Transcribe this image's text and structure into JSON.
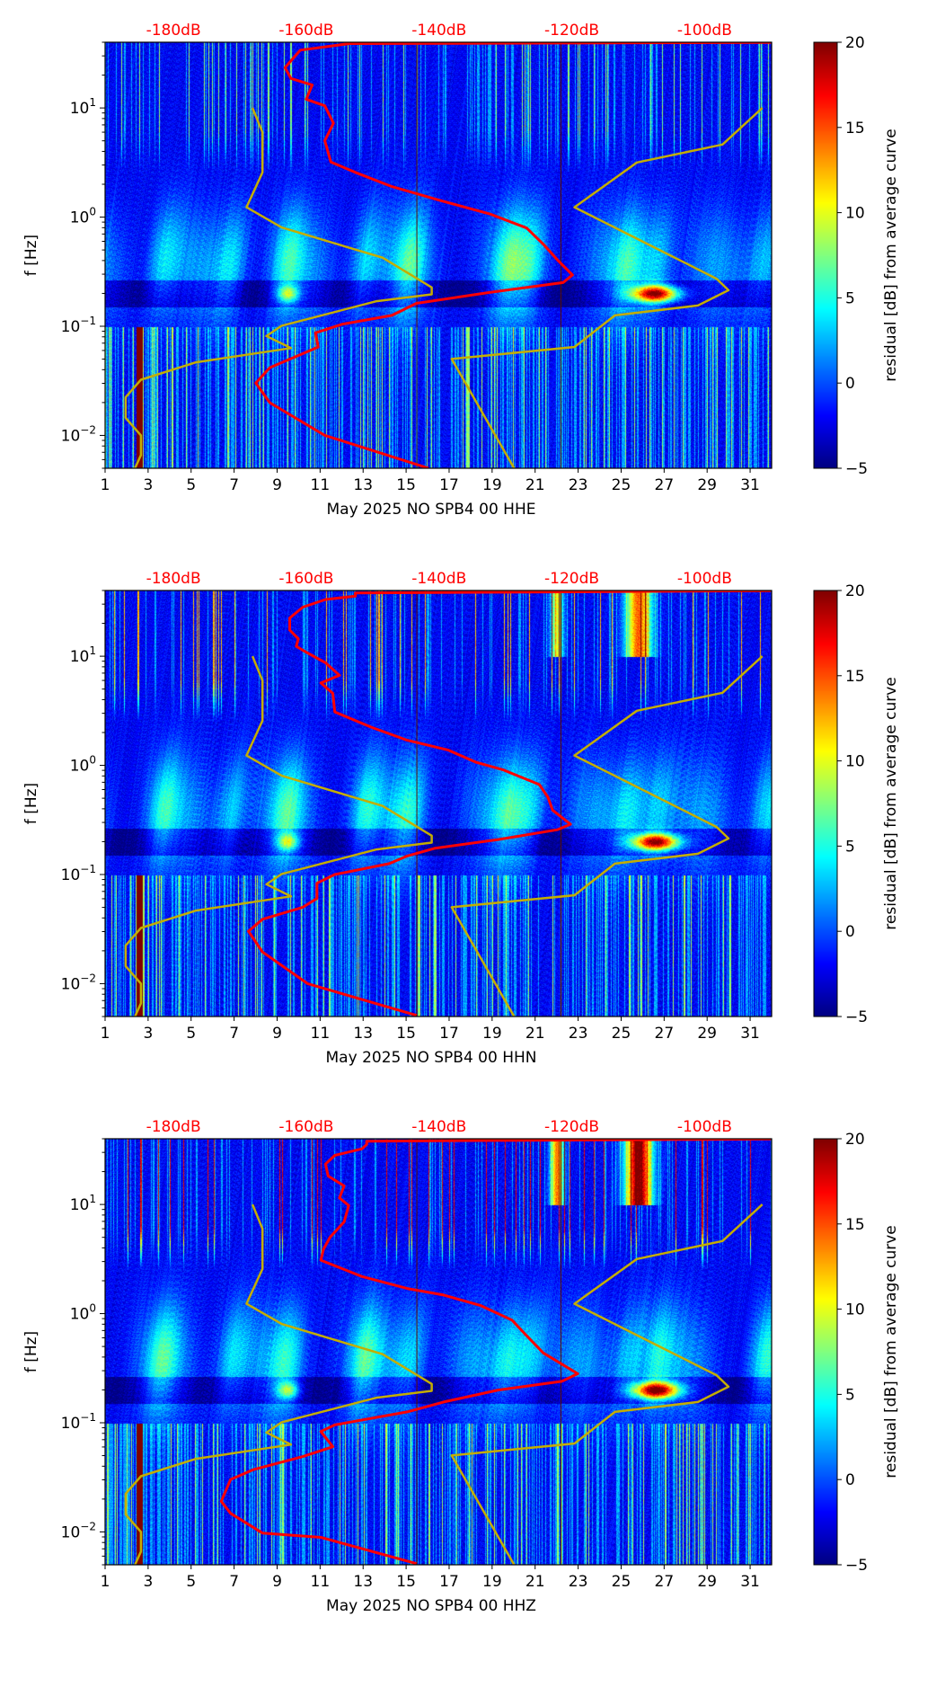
{
  "chart_data": [
    {
      "type": "heatmap",
      "xlabel": "May 2025 NO SPB4 00 HHE",
      "ylabel": "f [Hz]",
      "x_ticks": [
        1,
        3,
        5,
        7,
        9,
        11,
        13,
        15,
        17,
        19,
        21,
        23,
        25,
        27,
        29,
        31
      ],
      "xlim": [
        1,
        32
      ],
      "yscale": "log",
      "ylim": [
        0.005,
        40
      ],
      "y_ticks": [
        {
          "value": 10,
          "base": "10",
          "exp": "1"
        },
        {
          "value": 1,
          "base": "10",
          "exp": "0"
        },
        {
          "value": 0.1,
          "base": "10",
          "exp": "−1"
        },
        {
          "value": 0.01,
          "base": "10",
          "exp": "−2"
        }
      ],
      "top_axis": {
        "labels": [
          "-180dB",
          "-160dB",
          "-140dB",
          "-120dB",
          "-100dB"
        ],
        "values": [
          -180,
          -160,
          -140,
          -120,
          -100
        ],
        "range": [
          -190.3,
          -89.9
        ],
        "color": "#ff0000"
      },
      "colorbar": {
        "label": "residual [dB] from average curve",
        "ticks": [
          -5,
          0,
          5,
          10,
          15,
          20
        ],
        "tick_labels": [
          "−5",
          "0",
          "5",
          "10",
          "15",
          "20"
        ],
        "range": [
          -5,
          20
        ],
        "colormap": "jet"
      },
      "event_seed": 1,
      "curves": {
        "station_psd": {
          "color": "#ff0000",
          "points_db_log10hz": [
            [
              -90,
              1.6
            ],
            [
              -153.5,
              1.59
            ],
            [
              -160.9,
              1.53
            ],
            [
              -163.2,
              1.37
            ],
            [
              -162.3,
              1.27
            ],
            [
              -159.1,
              1.21
            ],
            [
              -160.0,
              1.08
            ],
            [
              -157.2,
              1.02
            ],
            [
              -155.9,
              0.86
            ],
            [
              -157.2,
              0.7
            ],
            [
              -156.3,
              0.505
            ],
            [
              -152.6,
              0.41
            ],
            [
              -147.1,
              0.28
            ],
            [
              -139.7,
              0.15
            ],
            [
              -132.4,
              0.03
            ],
            [
              -126.8,
              -0.1
            ],
            [
              -124.1,
              -0.26
            ],
            [
              -122.2,
              -0.39
            ],
            [
              -119.9,
              -0.53
            ],
            [
              -121.3,
              -0.6
            ],
            [
              -132.4,
              -0.69
            ],
            [
              -143.4,
              -0.79
            ],
            [
              -147.1,
              -0.9
            ],
            [
              -154.5,
              -0.98
            ],
            [
              -158.6,
              -1.06
            ],
            [
              -158.2,
              -1.19
            ],
            [
              -165.5,
              -1.38
            ],
            [
              -167.6,
              -1.52
            ],
            [
              -165.5,
              -1.7
            ],
            [
              -157.2,
              -2.0
            ],
            [
              -141.6,
              -2.3
            ]
          ]
        },
        "low_noise_model": {
          "color": "#c4ad00",
          "points_db_log10hz": [
            [
              -168.1,
              1.0
            ],
            [
              -166.6,
              0.777
            ],
            [
              -166.6,
              0.41
            ],
            [
              -169.0,
              0.09
            ],
            [
              -163.7,
              -0.095
            ],
            [
              -148.5,
              -0.372
            ],
            [
              -141.1,
              -0.644
            ],
            [
              -141.1,
              -0.708
            ],
            [
              -149.4,
              -0.77
            ],
            [
              -163.7,
              -0.995
            ],
            [
              -166.0,
              -1.09
            ],
            [
              -162.3,
              -1.2
            ],
            [
              -176.6,
              -1.33
            ],
            [
              -184.9,
              -1.49
            ],
            [
              -187.2,
              -1.65
            ],
            [
              -187.2,
              -1.84
            ],
            [
              -184.9,
              -2.0
            ],
            [
              -184.9,
              -2.18
            ],
            [
              -185.8,
              -2.3
            ]
          ]
        },
        "high_noise_model": {
          "color": "#c4ad00",
          "points_db_log10hz": [
            [
              -91.3,
              1.0
            ],
            [
              -97.3,
              0.665
            ],
            [
              -110.2,
              0.5
            ],
            [
              -119.6,
              0.09
            ],
            [
              -98.2,
              -0.564
            ],
            [
              -96.4,
              -0.67
            ],
            [
              -101.0,
              -0.81
            ],
            [
              -113.5,
              -0.9
            ],
            [
              -119.6,
              -1.19
            ],
            [
              -138.1,
              -1.3
            ],
            [
              -128.7,
              -2.3
            ]
          ]
        }
      }
    },
    {
      "type": "heatmap",
      "xlabel": "May 2025 NO SPB4 00 HHN",
      "ylabel": "f [Hz]",
      "x_ticks": [
        1,
        3,
        5,
        7,
        9,
        11,
        13,
        15,
        17,
        19,
        21,
        23,
        25,
        27,
        29,
        31
      ],
      "xlim": [
        1,
        32
      ],
      "yscale": "log",
      "ylim": [
        0.005,
        40
      ],
      "y_ticks": [
        {
          "value": 10,
          "base": "10",
          "exp": "1"
        },
        {
          "value": 1,
          "base": "10",
          "exp": "0"
        },
        {
          "value": 0.1,
          "base": "10",
          "exp": "−1"
        },
        {
          "value": 0.01,
          "base": "10",
          "exp": "−2"
        }
      ],
      "top_axis": {
        "labels": [
          "-180dB",
          "-160dB",
          "-140dB",
          "-120dB",
          "-100dB"
        ],
        "values": [
          -180,
          -160,
          -140,
          -120,
          -100
        ],
        "range": [
          -190.3,
          -89.9
        ],
        "color": "#ff0000"
      },
      "colorbar": {
        "label": "residual [dB] from average curve",
        "ticks": [
          -5,
          0,
          5,
          10,
          15,
          20
        ],
        "tick_labels": [
          "−5",
          "0",
          "5",
          "10",
          "15",
          "20"
        ],
        "range": [
          -5,
          20
        ],
        "colormap": "jet"
      },
      "event_seed": 2,
      "curves": {
        "station_psd": {
          "color": "#ff0000",
          "points_db_log10hz": [
            [
              -90,
              1.6
            ],
            [
              -152.6,
              1.58
            ],
            [
              -152.6,
              1.55
            ],
            [
              -157.1,
              1.52
            ],
            [
              -160.5,
              1.45
            ],
            [
              -162.5,
              1.35
            ],
            [
              -162.5,
              1.24
            ],
            [
              -161.2,
              1.16
            ],
            [
              -161.5,
              1.09
            ],
            [
              -159.8,
              1.03
            ],
            [
              -157.1,
              0.94
            ],
            [
              -155.0,
              0.825
            ],
            [
              -157.8,
              0.755
            ],
            [
              -156.0,
              0.66
            ],
            [
              -155.7,
              0.49
            ],
            [
              -150.2,
              0.35
            ],
            [
              -144.8,
              0.23
            ],
            [
              -138.6,
              0.14
            ],
            [
              -134.5,
              0.03
            ],
            [
              -130.4,
              -0.04
            ],
            [
              -124.9,
              -0.176
            ],
            [
              -123.6,
              -0.29
            ],
            [
              -122.9,
              -0.41
            ],
            [
              -120.2,
              -0.54
            ],
            [
              -122.2,
              -0.59
            ],
            [
              -131.1,
              -0.68
            ],
            [
              -140.7,
              -0.76
            ],
            [
              -144.8,
              -0.83
            ],
            [
              -147.5,
              -0.9
            ],
            [
              -155.7,
              -1.0
            ],
            [
              -158.4,
              -1.08
            ],
            [
              -158.4,
              -1.22
            ],
            [
              -160.5,
              -1.3
            ],
            [
              -166.6,
              -1.41
            ],
            [
              -168.7,
              -1.52
            ],
            [
              -166.6,
              -1.71
            ],
            [
              -159.8,
              -2.0
            ],
            [
              -143.4,
              -2.29
            ]
          ]
        },
        "low_noise_model": {
          "color": "#c4ad00",
          "points_db_log10hz": [
            [
              -168.1,
              1.0
            ],
            [
              -166.6,
              0.777
            ],
            [
              -166.6,
              0.41
            ],
            [
              -169.0,
              0.09
            ],
            [
              -163.7,
              -0.095
            ],
            [
              -148.5,
              -0.372
            ],
            [
              -141.1,
              -0.644
            ],
            [
              -141.1,
              -0.708
            ],
            [
              -149.4,
              -0.77
            ],
            [
              -163.7,
              -0.995
            ],
            [
              -166.0,
              -1.09
            ],
            [
              -162.3,
              -1.2
            ],
            [
              -176.6,
              -1.33
            ],
            [
              -184.9,
              -1.49
            ],
            [
              -187.2,
              -1.65
            ],
            [
              -187.2,
              -1.84
            ],
            [
              -184.9,
              -2.0
            ],
            [
              -184.9,
              -2.18
            ],
            [
              -185.8,
              -2.3
            ]
          ]
        },
        "high_noise_model": {
          "color": "#c4ad00",
          "points_db_log10hz": [
            [
              -91.3,
              1.0
            ],
            [
              -97.3,
              0.665
            ],
            [
              -110.2,
              0.5
            ],
            [
              -119.6,
              0.09
            ],
            [
              -98.2,
              -0.564
            ],
            [
              -96.4,
              -0.67
            ],
            [
              -101.0,
              -0.81
            ],
            [
              -113.5,
              -0.9
            ],
            [
              -119.6,
              -1.19
            ],
            [
              -138.1,
              -1.3
            ],
            [
              -128.7,
              -2.3
            ]
          ]
        }
      }
    },
    {
      "type": "heatmap",
      "xlabel": "May 2025 NO SPB4 00 HHZ",
      "ylabel": "f [Hz]",
      "x_ticks": [
        1,
        3,
        5,
        7,
        9,
        11,
        13,
        15,
        17,
        19,
        21,
        23,
        25,
        27,
        29,
        31
      ],
      "xlim": [
        1,
        32
      ],
      "yscale": "log",
      "ylim": [
        0.005,
        40
      ],
      "y_ticks": [
        {
          "value": 10,
          "base": "10",
          "exp": "1"
        },
        {
          "value": 1,
          "base": "10",
          "exp": "0"
        },
        {
          "value": 0.1,
          "base": "10",
          "exp": "−1"
        },
        {
          "value": 0.01,
          "base": "10",
          "exp": "−2"
        }
      ],
      "top_axis": {
        "labels": [
          "-180dB",
          "-160dB",
          "-140dB",
          "-120dB",
          "-100dB"
        ],
        "values": [
          -180,
          -160,
          -140,
          -120,
          -100
        ],
        "range": [
          -190.3,
          -89.9
        ],
        "color": "#ff0000"
      },
      "colorbar": {
        "label": "residual [dB] from average curve",
        "ticks": [
          -5,
          0,
          5,
          10,
          15,
          20
        ],
        "tick_labels": [
          "−5",
          "0",
          "5",
          "10",
          "15",
          "20"
        ],
        "range": [
          -5,
          20
        ],
        "colormap": "jet"
      },
      "event_seed": 3,
      "curves": {
        "station_psd": {
          "color": "#ff0000",
          "points_db_log10hz": [
            [
              -90,
              1.6
            ],
            [
              -150.9,
              1.58
            ],
            [
              -150.9,
              1.55
            ],
            [
              -151.6,
              1.51
            ],
            [
              -155.7,
              1.45
            ],
            [
              -157.1,
              1.37
            ],
            [
              -156.7,
              1.26
            ],
            [
              -154.3,
              1.17
            ],
            [
              -155.0,
              1.06
            ],
            [
              -153.6,
              0.99
            ],
            [
              -154.3,
              0.84
            ],
            [
              -156.4,
              0.7
            ],
            [
              -157.4,
              0.59
            ],
            [
              -157.8,
              0.49
            ],
            [
              -151.6,
              0.34
            ],
            [
              -144.8,
              0.23
            ],
            [
              -139.3,
              0.17
            ],
            [
              -133.8,
              0.075
            ],
            [
              -129.0,
              -0.06
            ],
            [
              -127.0,
              -0.19
            ],
            [
              -124.3,
              -0.36
            ],
            [
              -119.1,
              -0.55
            ],
            [
              -121.5,
              -0.62
            ],
            [
              -131.1,
              -0.7
            ],
            [
              -139.3,
              -0.81
            ],
            [
              -144.8,
              -0.9
            ],
            [
              -155.7,
              -1.02
            ],
            [
              -157.8,
              -1.08
            ],
            [
              -156.0,
              -1.22
            ],
            [
              -160.5,
              -1.31
            ],
            [
              -168.0,
              -1.43
            ],
            [
              -171.4,
              -1.52
            ],
            [
              -172.8,
              -1.72
            ],
            [
              -171.4,
              -1.83
            ],
            [
              -166.6,
              -2.01
            ],
            [
              -157.8,
              -2.05
            ],
            [
              -143.4,
              -2.29
            ]
          ]
        },
        "low_noise_model": {
          "color": "#c4ad00",
          "points_db_log10hz": [
            [
              -168.1,
              1.0
            ],
            [
              -166.6,
              0.777
            ],
            [
              -166.6,
              0.41
            ],
            [
              -169.0,
              0.09
            ],
            [
              -163.7,
              -0.095
            ],
            [
              -148.5,
              -0.372
            ],
            [
              -141.1,
              -0.644
            ],
            [
              -141.1,
              -0.708
            ],
            [
              -149.4,
              -0.77
            ],
            [
              -163.7,
              -0.995
            ],
            [
              -166.0,
              -1.09
            ],
            [
              -162.3,
              -1.2
            ],
            [
              -176.6,
              -1.33
            ],
            [
              -184.9,
              -1.49
            ],
            [
              -187.2,
              -1.65
            ],
            [
              -187.2,
              -1.84
            ],
            [
              -184.9,
              -2.0
            ],
            [
              -184.9,
              -2.18
            ],
            [
              -185.8,
              -2.3
            ]
          ]
        },
        "high_noise_model": {
          "color": "#c4ad00",
          "points_db_log10hz": [
            [
              -91.3,
              1.0
            ],
            [
              -97.3,
              0.665
            ],
            [
              -110.2,
              0.5
            ],
            [
              -119.6,
              0.09
            ],
            [
              -98.2,
              -0.564
            ],
            [
              -96.4,
              -0.67
            ],
            [
              -101.0,
              -0.81
            ],
            [
              -113.5,
              -0.9
            ],
            [
              -119.6,
              -1.19
            ],
            [
              -138.1,
              -1.3
            ],
            [
              -128.7,
              -2.3
            ]
          ]
        }
      }
    }
  ]
}
